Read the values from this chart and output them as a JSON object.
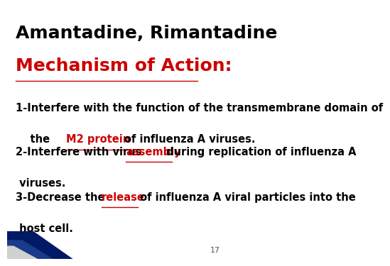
{
  "bg_color": "#ffffff",
  "title1": "Amantadine, Rimantadine",
  "title2": "Mechanism of Action:",
  "title1_color": "#000000",
  "title2_color": "#cc0000",
  "title1_fontsize": 18,
  "title2_fontsize": 18,
  "body_fontsize": 10.5,
  "body_color": "#000000",
  "highlight_color": "#cc0000",
  "p1_line1": "1-Interfere with the function of the transmembrane domain of",
  "p1_line2_pre": "    the ",
  "p1_line2_hl": "M2 protein ",
  "p1_line2_post": "of influenza A viruses.",
  "p2_line1_pre": "2-Interfere with virus ",
  "p2_line1_hl": "assembly",
  "p2_line1_post": " during replication of influenza A",
  "p2_line2": " viruses.",
  "p3_line1_pre": "3-Decrease the ",
  "p3_line1_hl": "release",
  "p3_line1_post": " of influenza A viral particles into the",
  "p3_line2": " host cell.",
  "slide_number": "17",
  "corner_colors": [
    "#001a66",
    "#1a3a8a",
    "#d0d0d0"
  ]
}
